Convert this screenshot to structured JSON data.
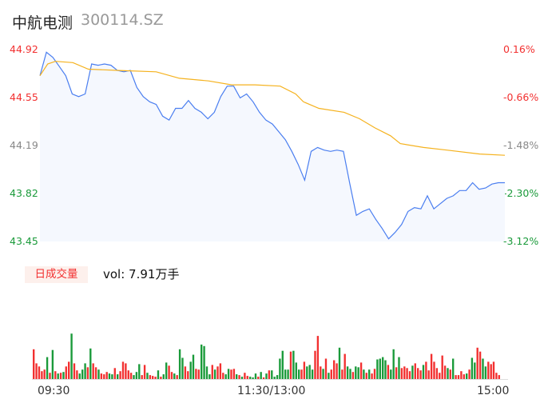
{
  "header": {
    "name": "中航电测",
    "code": "300114.SZ"
  },
  "chart_data": [
    {
      "type": "line",
      "ylim": [
        43.45,
        44.92
      ],
      "y_ticks_left": [
        "44.92",
        "44.55",
        "44.19",
        "43.82",
        "43.45"
      ],
      "y_ticks_right": [
        "0.16%",
        "-0.66%",
        "-1.48%",
        "-2.30%",
        "-3.12%"
      ],
      "x_ticks": [
        "09:30",
        "11:30/13:00",
        "15:00"
      ],
      "session_minutes": 240,
      "colors": {
        "price": "#4a7ef0",
        "avg": "#f5b21e",
        "up": "#f23030",
        "down": "#1a9a3a",
        "flat": "#888888"
      },
      "price": [
        44.72,
        44.9,
        44.86,
        44.79,
        44.72,
        44.58,
        44.56,
        44.58,
        44.81,
        44.8,
        44.81,
        44.8,
        44.76,
        44.75,
        44.76,
        44.63,
        44.56,
        44.52,
        44.5,
        44.41,
        44.38,
        44.47,
        44.47,
        44.53,
        44.47,
        44.44,
        44.39,
        44.44,
        44.56,
        44.64,
        44.64,
        44.55,
        44.58,
        44.52,
        44.44,
        44.38,
        44.35,
        44.29,
        44.23,
        44.14,
        44.04,
        43.92,
        44.14,
        44.17,
        44.15,
        44.14,
        44.15,
        44.14,
        43.89,
        43.65,
        43.68,
        43.7,
        43.62,
        43.55,
        43.47,
        43.52,
        43.58,
        43.68,
        43.71,
        43.7,
        43.8,
        43.7,
        43.74,
        43.78,
        43.8,
        43.84,
        43.84,
        43.9,
        43.85,
        43.86,
        43.89,
        43.9,
        43.9
      ],
      "avg_price": [
        [
          0,
          44.72
        ],
        [
          4,
          44.81
        ],
        [
          8,
          44.83
        ],
        [
          17,
          44.82
        ],
        [
          25,
          44.77
        ],
        [
          41,
          44.76
        ],
        [
          60,
          44.75
        ],
        [
          72,
          44.7
        ],
        [
          87,
          44.68
        ],
        [
          99,
          44.65
        ],
        [
          111,
          44.65
        ],
        [
          124,
          44.64
        ],
        [
          132,
          44.58
        ],
        [
          136,
          44.52
        ],
        [
          144,
          44.47
        ],
        [
          157,
          44.44
        ],
        [
          165,
          44.39
        ],
        [
          173,
          44.32
        ],
        [
          181,
          44.26
        ],
        [
          186,
          44.2
        ],
        [
          198,
          44.17
        ],
        [
          210,
          44.15
        ],
        [
          227,
          44.12
        ],
        [
          240,
          44.11
        ]
      ]
    },
    {
      "type": "bar",
      "label": "日成交量",
      "summary": "vol: 7.91万手",
      "ylim": [
        0,
        100
      ],
      "values": [
        38,
        20,
        16,
        10,
        12,
        28,
        8,
        37,
        10,
        7,
        8,
        9,
        16,
        22,
        58,
        20,
        11,
        7,
        12,
        20,
        15,
        39,
        20,
        15,
        12,
        7,
        6,
        9,
        7,
        6,
        14,
        6,
        10,
        22,
        20,
        11,
        8,
        5,
        9,
        19,
        5,
        18,
        8,
        5,
        4,
        3,
        11,
        3,
        6,
        21,
        17,
        9,
        7,
        5,
        38,
        27,
        16,
        10,
        22,
        31,
        13,
        12,
        44,
        42,
        16,
        6,
        18,
        12,
        16,
        20,
        8,
        6,
        13,
        12,
        13,
        6,
        5,
        3,
        8,
        4,
        3,
        2,
        7,
        3,
        9,
        2,
        7,
        11,
        11,
        3,
        5,
        26,
        36,
        12,
        12,
        35,
        36,
        21,
        12,
        12,
        22,
        16,
        18,
        12,
        36,
        55,
        16,
        13,
        26,
        8,
        12,
        24,
        20,
        40,
        12,
        32,
        16,
        13,
        9,
        16,
        15,
        21,
        12,
        8,
        12,
        7,
        13,
        25,
        26,
        28,
        24,
        18,
        12,
        38,
        15,
        28,
        14,
        16,
        14,
        10,
        17,
        20,
        14,
        11,
        18,
        22,
        11,
        32,
        22,
        14,
        8,
        30,
        17,
        14,
        12,
        26,
        5,
        5,
        10,
        6,
        7,
        12,
        27,
        21,
        40,
        35,
        26,
        16,
        22,
        19,
        22,
        8,
        5
      ],
      "signs": [
        1,
        1,
        1,
        1,
        1,
        -1,
        1,
        -1,
        1,
        -1,
        1,
        -1,
        1,
        1,
        -1,
        1,
        1,
        -1,
        -1,
        -1,
        1,
        -1,
        1,
        1,
        -1,
        1,
        1,
        1,
        -1,
        -1,
        1,
        -1,
        1,
        1,
        1,
        1,
        1,
        -1,
        -1,
        -1,
        1,
        1,
        -1,
        1,
        1,
        1,
        -1,
        1,
        -1,
        -1,
        1,
        1,
        -1,
        1,
        -1,
        -1,
        1,
        1,
        -1,
        -1,
        1,
        1,
        -1,
        -1,
        -1,
        -1,
        1,
        -1,
        1,
        1,
        1,
        -1,
        -1,
        1,
        1,
        -1,
        1,
        -1,
        1,
        1,
        -1,
        -1,
        -1,
        1,
        -1,
        1,
        -1,
        1,
        -1,
        -1,
        -1,
        -1,
        -1,
        -1,
        -1,
        1,
        -1,
        -1,
        -1,
        1,
        1,
        -1,
        -1,
        -1,
        1,
        1,
        1,
        -1,
        1,
        -1,
        1,
        1,
        1,
        -1,
        1,
        1,
        -1,
        -1,
        1,
        -1,
        -1,
        1,
        -1,
        1,
        -1,
        1,
        1,
        -1,
        -1,
        -1,
        -1,
        1,
        -1,
        -1,
        1,
        -1,
        1,
        1,
        1,
        1,
        -1,
        1,
        1,
        1,
        -1,
        1,
        1,
        1,
        1,
        1,
        1,
        1,
        1,
        -1,
        1,
        -1,
        1,
        1,
        1,
        1,
        -1,
        1,
        -1,
        -1,
        1,
        1,
        -1,
        -1,
        1,
        1,
        1,
        1,
        1,
        1,
        1,
        -1,
        -1,
        -1
      ]
    }
  ]
}
